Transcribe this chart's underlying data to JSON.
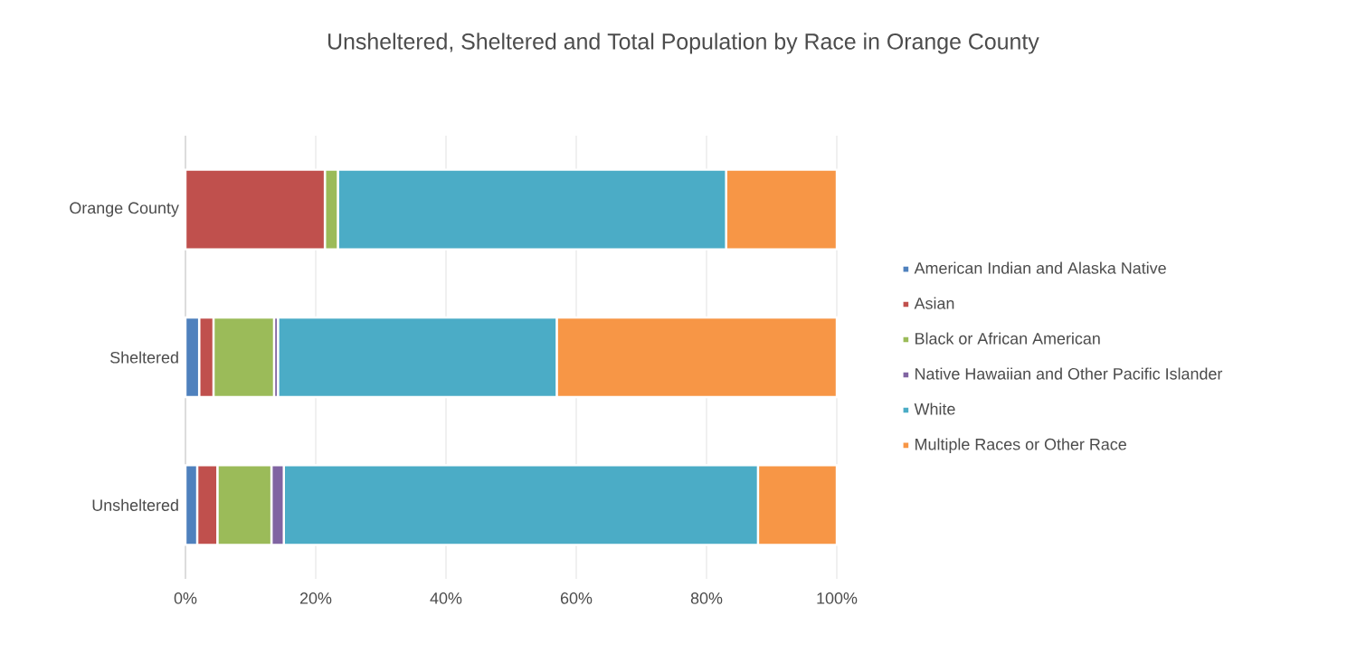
{
  "chart_data": {
    "type": "bar",
    "orientation": "horizontal",
    "stacked": true,
    "title": "Unsheltered, Sheltered and Total Population by Race in Orange County",
    "categories": [
      "Orange County",
      "Sheltered",
      "Unsheltered"
    ],
    "series": [
      {
        "name": "American Indian and Alaska Native",
        "color": "#4f81bd",
        "values": [
          null,
          2.1,
          1.8
        ]
      },
      {
        "name": "Asian",
        "color": "#c0504d",
        "values": [
          21.4,
          2.2,
          3.1
        ]
      },
      {
        "name": "Black or African American",
        "color": "#9bbb59",
        "values": [
          2.0,
          9.3,
          8.3
        ]
      },
      {
        "name": "Native Hawaiian and Other Pacific Islander",
        "color": "#8064a2",
        "values": [
          null,
          0.6,
          1.9
        ]
      },
      {
        "name": "White",
        "color": "#4bacc6",
        "values": [
          59.6,
          42.8,
          72.8
        ]
      },
      {
        "name": "Multiple Races or Other Race",
        "color": "#f79646",
        "values": [
          17.0,
          43.0,
          12.1
        ]
      }
    ],
    "xlim": [
      0,
      100
    ],
    "xticks": [
      {
        "value": 0,
        "label": "0%"
      },
      {
        "value": 20,
        "label": "20%"
      },
      {
        "value": 40,
        "label": "40%"
      },
      {
        "value": 60,
        "label": "60%"
      },
      {
        "value": 80,
        "label": "80%"
      },
      {
        "value": 100,
        "label": "100%"
      }
    ],
    "grid": "x",
    "legend": "right"
  }
}
